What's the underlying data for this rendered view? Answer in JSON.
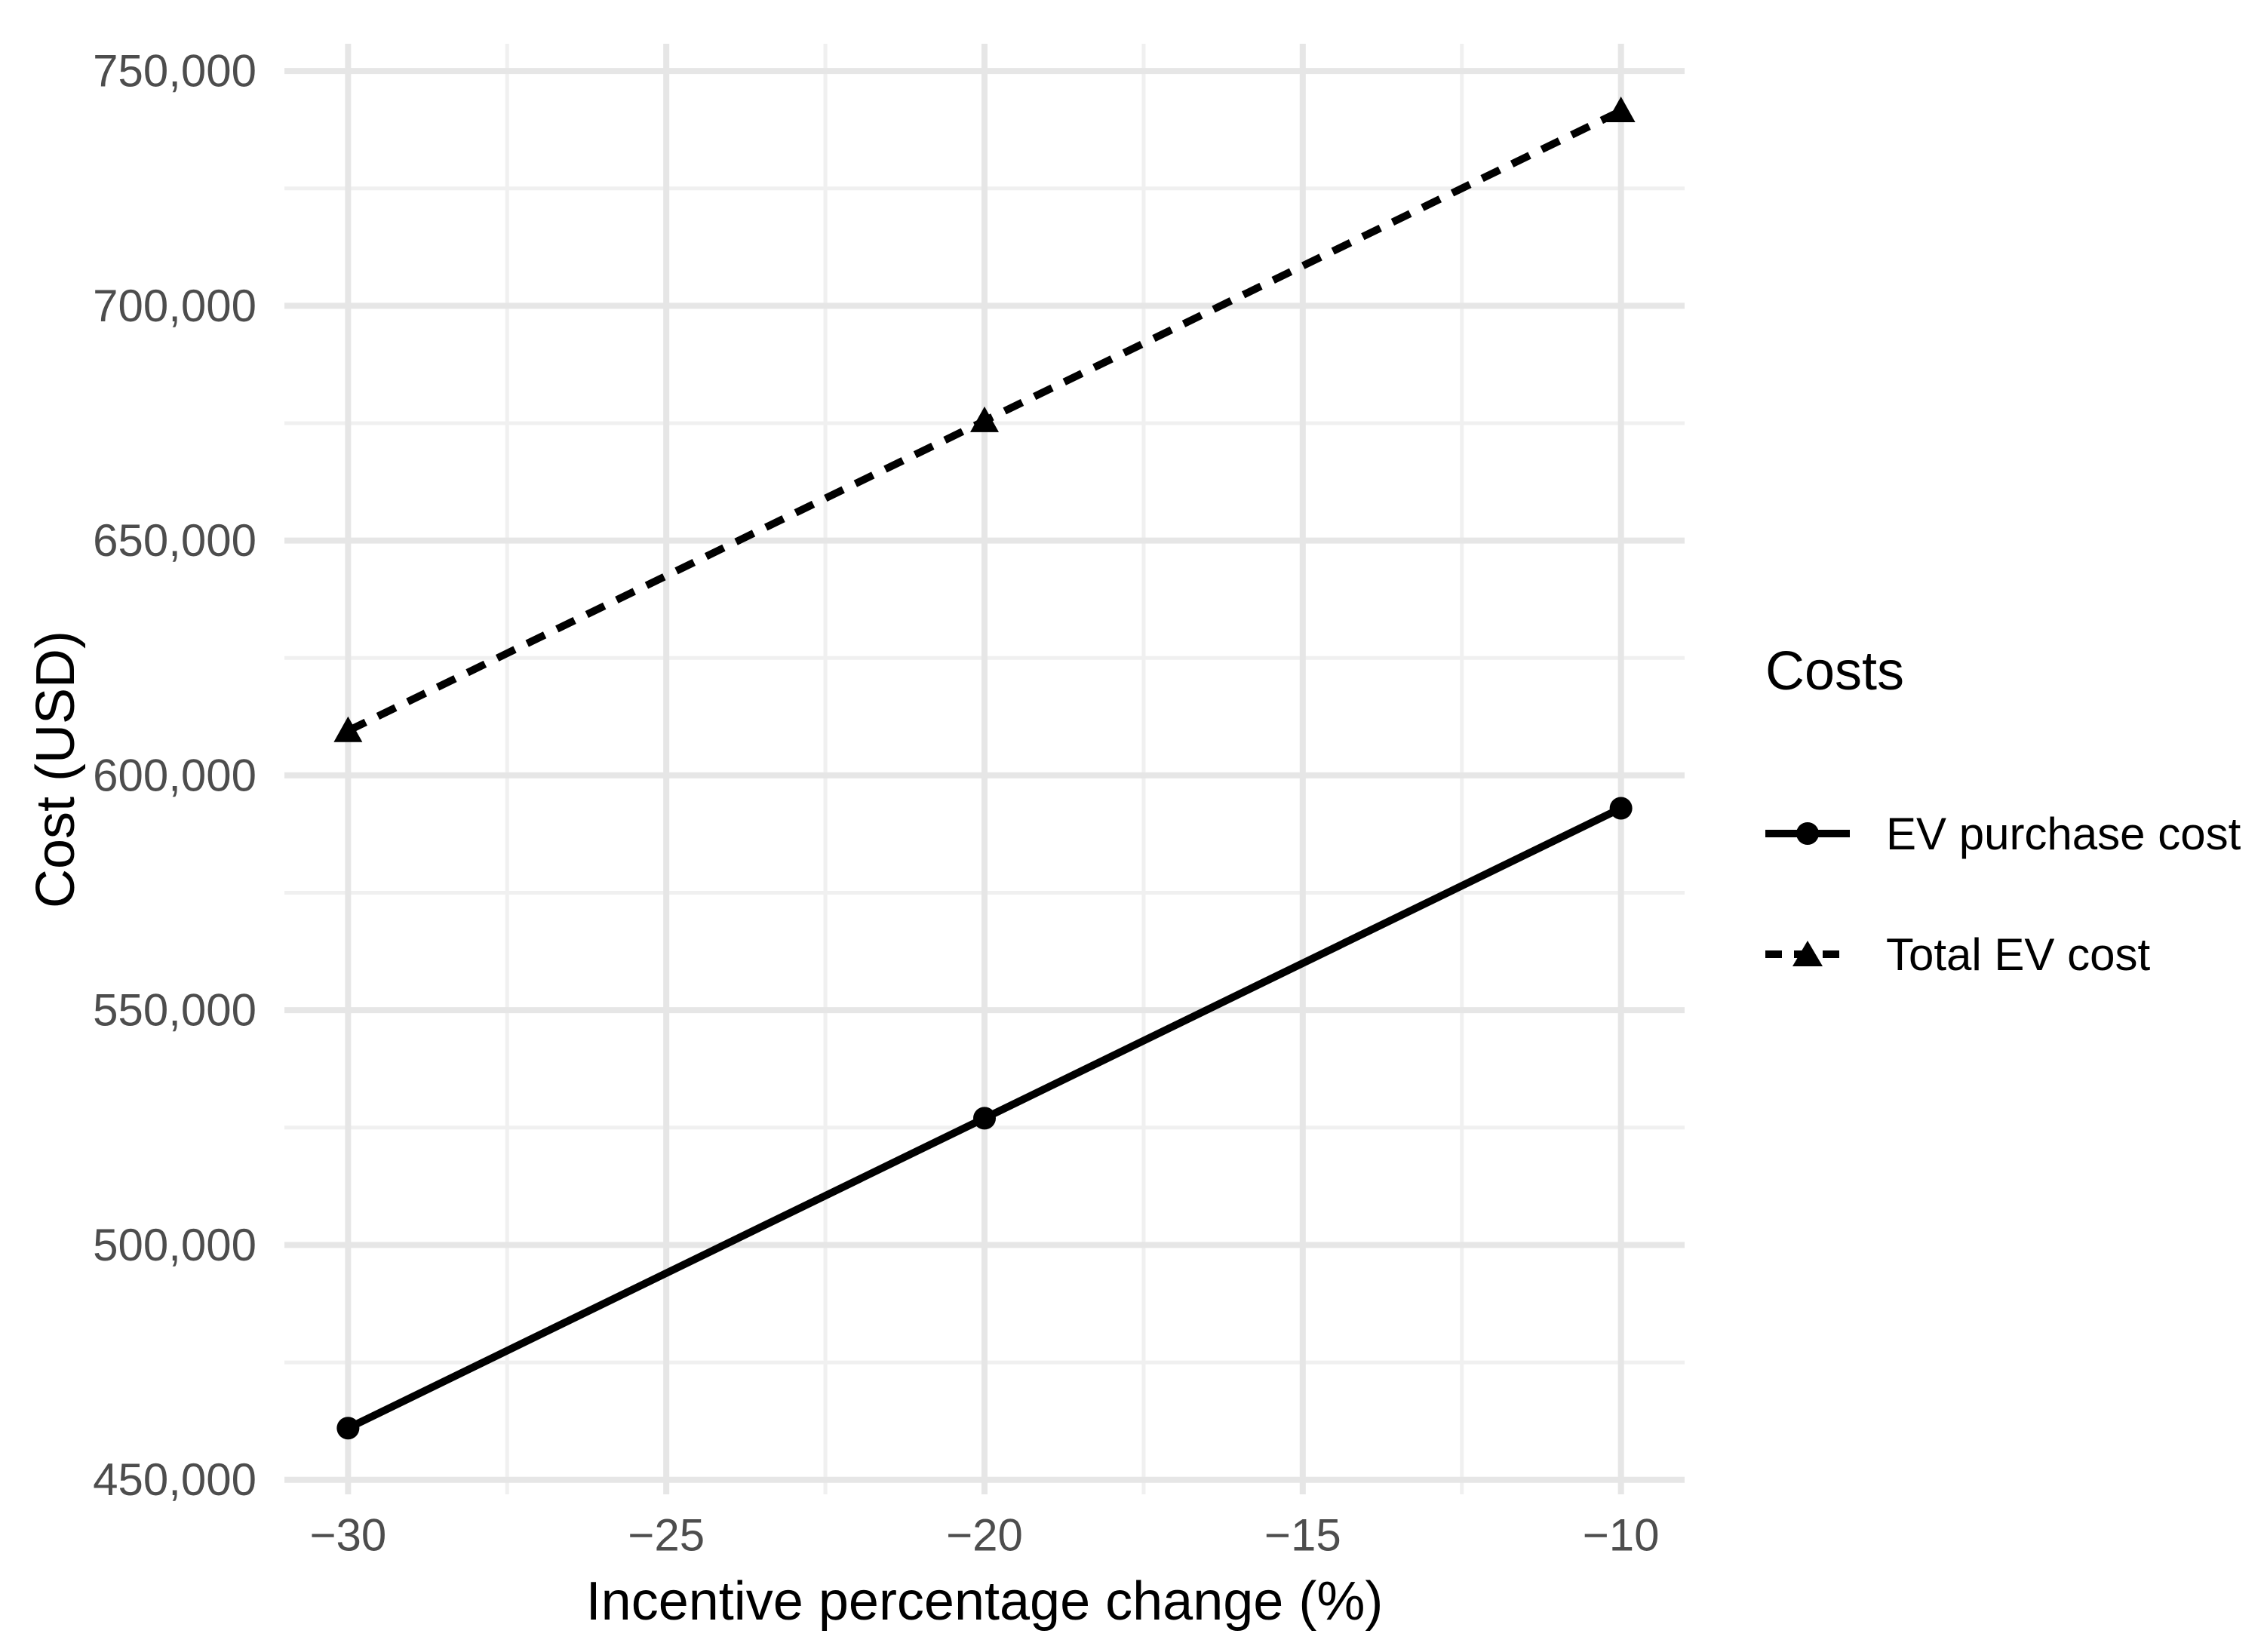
{
  "chart_data": {
    "type": "line",
    "title": "",
    "xlabel": "Incentive percentage change (%)",
    "ylabel": "Cost (USD)",
    "x": [
      -30,
      -20,
      -10
    ],
    "series": [
      {
        "name": "EV purchase cost",
        "values": [
          461000,
          527000,
          593000
        ],
        "line": "solid",
        "marker": "circle"
      },
      {
        "name": "Total EV cost",
        "values": [
          609500,
          675500,
          741500
        ],
        "line": "dashed",
        "marker": "triangle"
      }
    ],
    "legend": {
      "title": "Costs",
      "position": "right",
      "entries": [
        "EV purchase cost",
        "Total EV cost"
      ]
    },
    "x_ticks": {
      "values": [
        -30,
        -25,
        -20,
        -15,
        -10
      ],
      "labels": [
        "−30",
        "−25",
        "−20",
        "−15",
        "−10"
      ]
    },
    "y_ticks": {
      "values": [
        450000,
        500000,
        550000,
        600000,
        650000,
        700000,
        750000
      ],
      "labels": [
        "450,000",
        "500,000",
        "550,000",
        "600,000",
        "650,000",
        "700,000",
        "750,000"
      ]
    },
    "x_minor": [
      -27.5,
      -22.5,
      -17.5,
      -12.5
    ],
    "y_minor": [
      475000,
      525000,
      575000,
      625000,
      675000,
      725000
    ],
    "xlim": [
      -31,
      -9
    ],
    "ylim": [
      446900,
      755800
    ],
    "grid": "major and minor, no axis lines, no tick marks (theme_minimal)",
    "colors": {
      "series": "#000000",
      "tick_label": "#4D4D4D",
      "title": "#000000",
      "grid_major": "#E6E6E6",
      "grid_minor": "#F0F0F0",
      "background": "#FFFFFF"
    }
  }
}
